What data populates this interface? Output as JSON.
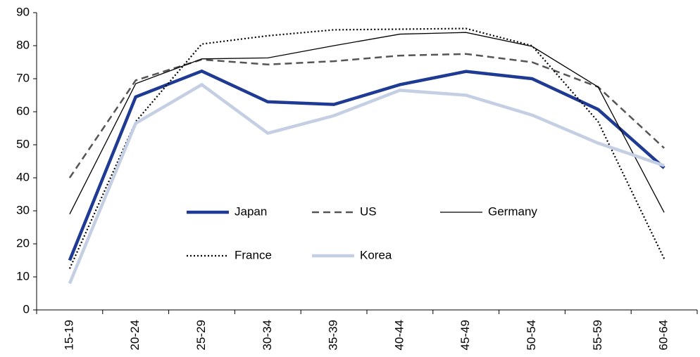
{
  "chart_data": {
    "type": "line",
    "categories": [
      "15-19",
      "20-24",
      "25-29",
      "30-34",
      "35-39",
      "40-44",
      "45-49",
      "50-54",
      "55-59",
      "60-64"
    ],
    "series": [
      {
        "name": "Japan",
        "color": "#1f3a93",
        "values": [
          15,
          64.5,
          72.3,
          63,
          62.2,
          68.2,
          72.2,
          70,
          60.7,
          43
        ]
      },
      {
        "name": "US",
        "color": "#555555",
        "values": [
          40,
          69.5,
          75.8,
          74.3,
          75.3,
          77,
          77.5,
          75,
          67.5,
          49
        ]
      },
      {
        "name": "Germany",
        "color": "#000000",
        "values": [
          29,
          68.5,
          76,
          76.3,
          80,
          83.5,
          84,
          79.8,
          67.5,
          29.5
        ]
      },
      {
        "name": "France",
        "color": "#000000",
        "values": [
          12.5,
          57,
          80.5,
          83,
          84.8,
          85,
          85.2,
          80,
          57,
          15.5
        ]
      },
      {
        "name": "Korea",
        "color": "#c5cfe3",
        "values": [
          8,
          56.5,
          68.2,
          53.5,
          58.8,
          66.5,
          65,
          59,
          50.5,
          43.7
        ]
      }
    ],
    "ylim": [
      0,
      90
    ],
    "yticks": [
      0,
      10,
      20,
      30,
      40,
      50,
      60,
      70,
      80,
      90
    ],
    "grid": false
  }
}
